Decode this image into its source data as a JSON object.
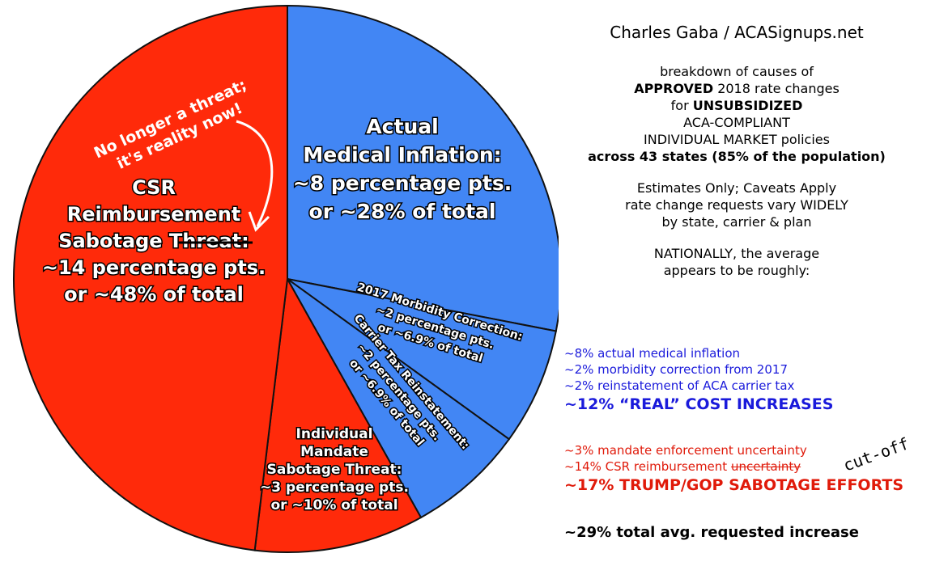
{
  "chart_data": {
    "type": "pie",
    "slices": [
      {
        "key": "medical",
        "lines": [
          "Actual",
          "Medical Inflation:",
          "~8 percentage pts.",
          "or ~28% of total"
        ],
        "value": 28,
        "color": "#4286f4"
      },
      {
        "key": "morbidity",
        "lines": [
          "2017 Morbidity Correction:",
          "~2 percentage pts.",
          "or ~6.9% of total"
        ],
        "value": 6.9,
        "color": "#4286f4"
      },
      {
        "key": "carrier",
        "lines": [
          "Carrier Tax Reinstatement:",
          "~2 percentage pts.",
          "or ~6.9% of total"
        ],
        "value": 6.9,
        "color": "#4286f4"
      },
      {
        "key": "mandate",
        "lines": [
          "Individual",
          "Mandate",
          "Sabotage Threat:",
          "~3 percentage pts.",
          "or ~10% of total"
        ],
        "value": 10,
        "color": "#ff2a0a"
      },
      {
        "key": "csr",
        "lines": [
          "CSR",
          "Reimbursement",
          "Sabotage Threat:",
          "~14 percentage pts.",
          "or ~48% of total"
        ],
        "value": 48,
        "color": "#ff2a0a"
      }
    ]
  },
  "annotation": {
    "note_line1": "No longer a threat;",
    "note_line2": "it's reality now!",
    "strike_word": "Threat:",
    "csr_line3_prefix": "Sabotage "
  },
  "panel": {
    "author": "Charles Gaba / ACASignups.net",
    "p1_line1": "breakdown of causes of",
    "p1_line2_bold": "APPROVED",
    "p1_line2_rest": " 2018 rate changes",
    "p1_line3_pre": "for ",
    "p1_line3_bold": "UNSUBSIDIZED",
    "p1_line4": "ACA-COMPLIANT",
    "p1_line5": "INDIVIDUAL MARKET policies",
    "p1_line6": "across 43 states (85% of the population)",
    "p2_line1": "Estimates Only; Caveats Apply",
    "p2_line2": "rate change requests vary WIDELY",
    "p2_line3": "by state, carrier & plan",
    "p3_line1": "NATIONALLY, the average",
    "p3_line2": "appears to be roughly:"
  },
  "blue_list": {
    "item1": "~8% actual medical inflation",
    "item2": "~2% morbidity correction from 2017",
    "item3": "~2% reinstatement of ACA carrier tax",
    "summary": "~12% “REAL” COST INCREASES"
  },
  "red_list": {
    "item1": "~3% mandate enforcement uncertainty",
    "item2_pre": "~14% CSR reimbursement ",
    "item2_strike": "uncertainty",
    "cutoff": "cut-off",
    "summary": "~17% TRUMP/GOP SABOTAGE EFFORTS"
  },
  "total": "~29% total avg. requested increase"
}
